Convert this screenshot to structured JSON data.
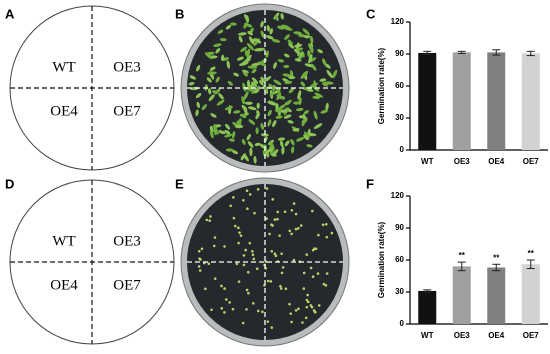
{
  "panel_labels": [
    "A",
    "B",
    "C",
    "D",
    "E",
    "F"
  ],
  "diagrams": [
    {
      "quadrants": [
        "WT",
        "OE3",
        "OE4",
        "OE7"
      ]
    },
    {
      "quadrants": [
        "WT",
        "OE3",
        "OE4",
        "OE7"
      ]
    }
  ],
  "chart_data": [
    {
      "type": "bar",
      "y_label": "Germination rate(%)",
      "categories": [
        "WT",
        "OE3",
        "OE4",
        "OE7"
      ],
      "values": [
        91,
        91.5,
        91.5,
        90.5
      ],
      "errors": [
        1.5,
        1,
        2.5,
        2
      ],
      "colors": [
        "#111111",
        "#a0a0a0",
        "#808080",
        "#d2d2d2"
      ],
      "ylim": [
        0,
        120
      ],
      "yticks": [
        0,
        30,
        60,
        90,
        120
      ]
    },
    {
      "type": "bar",
      "y_label": "Germination rate(%)",
      "categories": [
        "WT",
        "OE3",
        "OE4",
        "OE7"
      ],
      "values": [
        31,
        54,
        53,
        56
      ],
      "errors": [
        1,
        4,
        3,
        4
      ],
      "value_labels": [
        null,
        "**",
        "**",
        "**"
      ],
      "colors": [
        "#111111",
        "#a0a0a0",
        "#808080",
        "#d2d2d2"
      ],
      "ylim": [
        0,
        120
      ],
      "yticks": [
        0,
        30,
        60,
        90,
        120
      ]
    }
  ]
}
